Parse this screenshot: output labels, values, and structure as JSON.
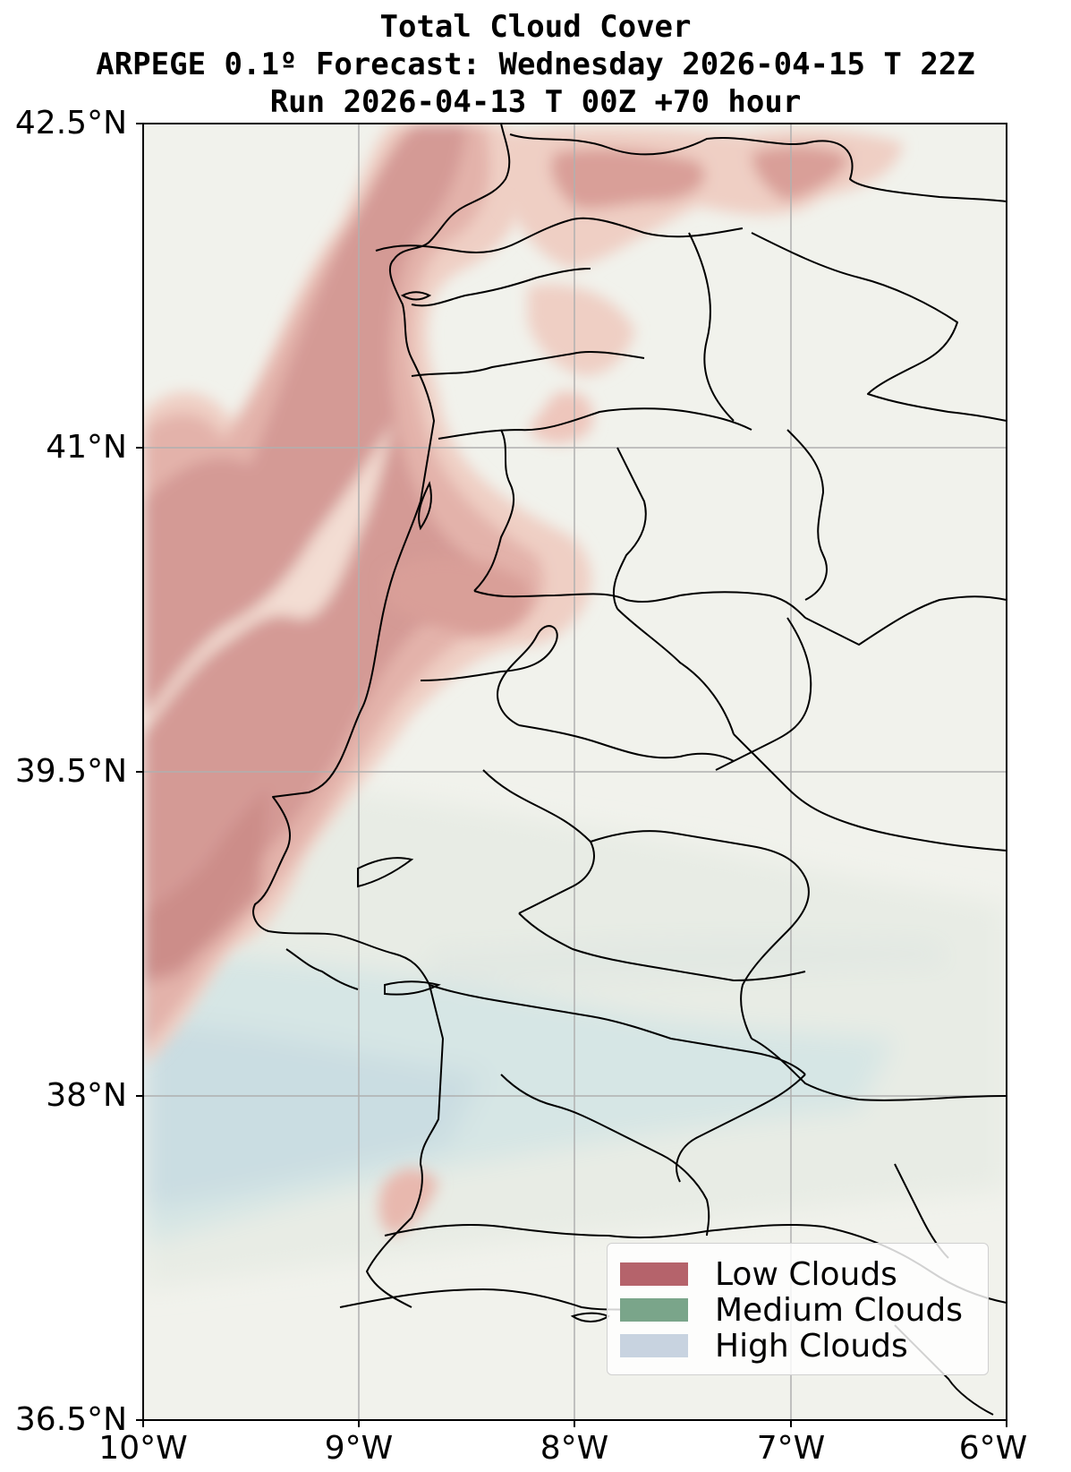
{
  "title": {
    "line1": "Total Cloud Cover",
    "line2": "ARPEGE 0.1º Forecast: Wednesday 2026-04-15 T 22Z",
    "line3": "Run 2026-04-13 T 00Z +70 hour"
  },
  "axes": {
    "y_ticks": [
      "42.5°N",
      "41°N",
      "39.5°N",
      "38°N",
      "36.5°N"
    ],
    "x_ticks": [
      "10°W",
      "9°W",
      "8°W",
      "7°W",
      "6°W"
    ],
    "lat_range": [
      36.5,
      42.5
    ],
    "lon_range": [
      -10,
      -6
    ],
    "grid": true
  },
  "legend": {
    "placement": "lower-right",
    "items": [
      {
        "label": "Low Clouds",
        "color": "#b5636b"
      },
      {
        "label": "Medium Clouds",
        "color": "#7aa58a"
      },
      {
        "label": "High Clouds",
        "color": "#c8d3e0"
      }
    ]
  },
  "colors": {
    "background": "#f1f2ec",
    "low_cloud": "#c98a86",
    "high_cloud": "#cfdfe2",
    "coastline": "#000000",
    "grid": "#b0b0b0"
  }
}
